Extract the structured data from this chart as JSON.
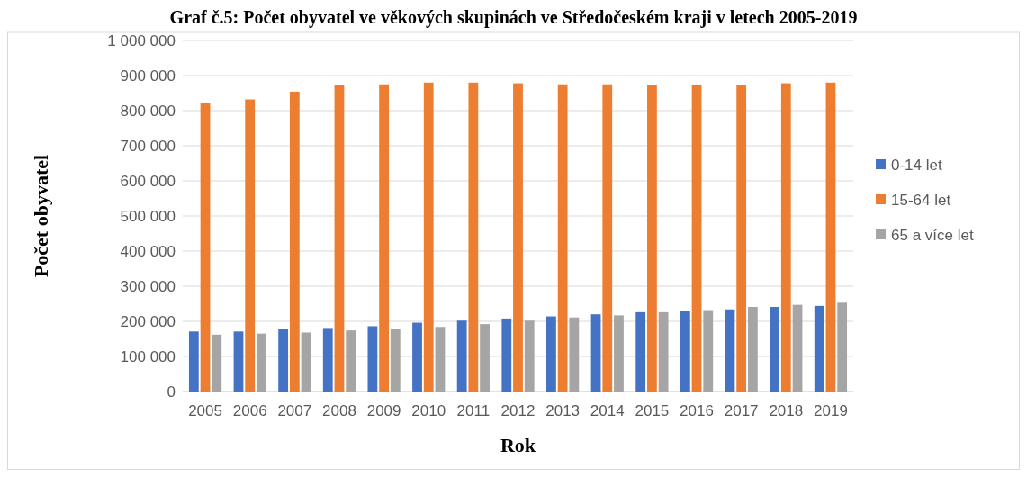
{
  "chart_data": {
    "type": "bar",
    "title": "Graf č.5: Počet obyvatel ve věkových skupinách ve Středočeském kraji v letech 2005-2019",
    "xlabel": "Rok",
    "ylabel": "Počet obyvatel",
    "categories": [
      "2005",
      "2006",
      "2007",
      "2008",
      "2009",
      "2010",
      "2011",
      "2012",
      "2013",
      "2014",
      "2015",
      "2016",
      "2017",
      "2018",
      "2019"
    ],
    "series": [
      {
        "name": "0-14 let",
        "color": "#4472c4",
        "values": [
          171000,
          171000,
          178000,
          181000,
          186000,
          196000,
          202000,
          208000,
          214000,
          220000,
          226000,
          229000,
          234000,
          241000,
          244000
        ]
      },
      {
        "name": "15-64 let",
        "color": "#ed7d31",
        "values": [
          821000,
          832000,
          854000,
          872000,
          875000,
          880000,
          880000,
          878000,
          875000,
          875000,
          872000,
          872000,
          872000,
          878000,
          880000
        ]
      },
      {
        "name": "65 a více let",
        "color": "#a5a5a5",
        "values": [
          162000,
          165000,
          168000,
          174000,
          178000,
          184000,
          192000,
          202000,
          211000,
          217000,
          226000,
          232000,
          241000,
          247000,
          253000
        ]
      }
    ],
    "ylim": [
      0,
      1000000
    ],
    "yticks": [
      0,
      {
        "value": 100000,
        "label": "100 000"
      },
      {
        "value": 200000,
        "label": "200 000"
      },
      {
        "value": 300000,
        "label": "300 000"
      },
      {
        "value": 400000,
        "label": "400 000"
      },
      {
        "value": 500000,
        "label": "500 000"
      },
      {
        "value": 600000,
        "label": "600 000"
      },
      {
        "value": 700000,
        "label": "700 000"
      },
      {
        "value": 800000,
        "label": "800 000"
      },
      {
        "value": 900000,
        "label": "900 000"
      },
      {
        "value": 1000000,
        "label": "1 000 000"
      }
    ],
    "grid": "y",
    "legend": "right"
  }
}
